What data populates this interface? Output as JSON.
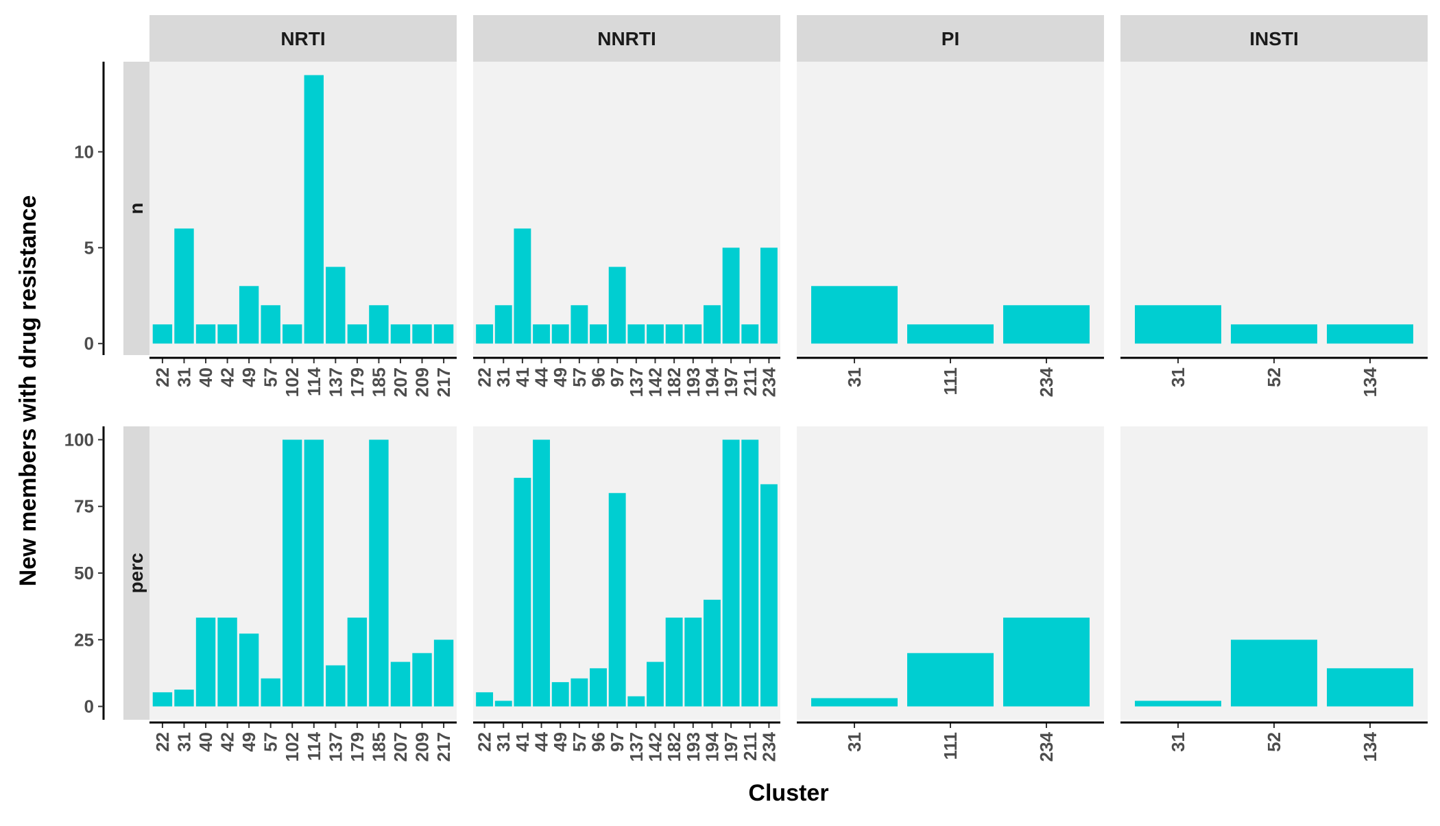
{
  "chart_data": {
    "type": "bar",
    "layout": "facet_grid",
    "xlabel": "Cluster",
    "ylabel": "New members with drug resistance",
    "colors": {
      "bar": "#00CED1",
      "panel_bg": "#F2F2F2",
      "strip_bg": "#D9D9D9",
      "axis_line": "#000000"
    },
    "column_facets": [
      "NRTI",
      "NNRTI",
      "PI",
      "INSTI"
    ],
    "row_facets": [
      {
        "name": "n",
        "ylim": [
          -0.6,
          14.7
        ],
        "ticks": [
          0,
          5,
          10
        ]
      },
      {
        "name": "perc",
        "ylim": [
          -5,
          105
        ],
        "ticks": [
          0,
          25,
          50,
          75,
          100
        ]
      }
    ],
    "panels": {
      "NRTI": {
        "categories": [
          "22",
          "31",
          "40",
          "42",
          "49",
          "57",
          "102",
          "114",
          "137",
          "179",
          "185",
          "207",
          "209",
          "217"
        ],
        "n": [
          1,
          6,
          1,
          1,
          3,
          2,
          1,
          14,
          4,
          1,
          2,
          1,
          1,
          1
        ],
        "perc": [
          5.3,
          6.3,
          33.3,
          33.3,
          27.3,
          10.5,
          100,
          100,
          15.4,
          33.3,
          100,
          16.7,
          20,
          25
        ]
      },
      "NNRTI": {
        "categories": [
          "22",
          "31",
          "41",
          "44",
          "49",
          "57",
          "96",
          "97",
          "137",
          "142",
          "182",
          "193",
          "194",
          "197",
          "211",
          "234"
        ],
        "n": [
          1,
          2,
          6,
          1,
          1,
          2,
          1,
          4,
          1,
          1,
          1,
          1,
          2,
          5,
          1,
          5
        ],
        "perc": [
          5.3,
          2.1,
          85.7,
          100,
          9.1,
          10.5,
          14.3,
          80,
          3.8,
          16.7,
          33.3,
          33.3,
          40,
          100,
          100,
          83.3
        ]
      },
      "PI": {
        "categories": [
          "31",
          "111",
          "234"
        ],
        "n": [
          3,
          1,
          2
        ],
        "perc": [
          3.1,
          20,
          33.3
        ]
      },
      "INSTI": {
        "categories": [
          "31",
          "52",
          "134"
        ],
        "n": [
          2,
          1,
          1
        ],
        "perc": [
          2.1,
          25,
          14.3
        ]
      }
    }
  }
}
